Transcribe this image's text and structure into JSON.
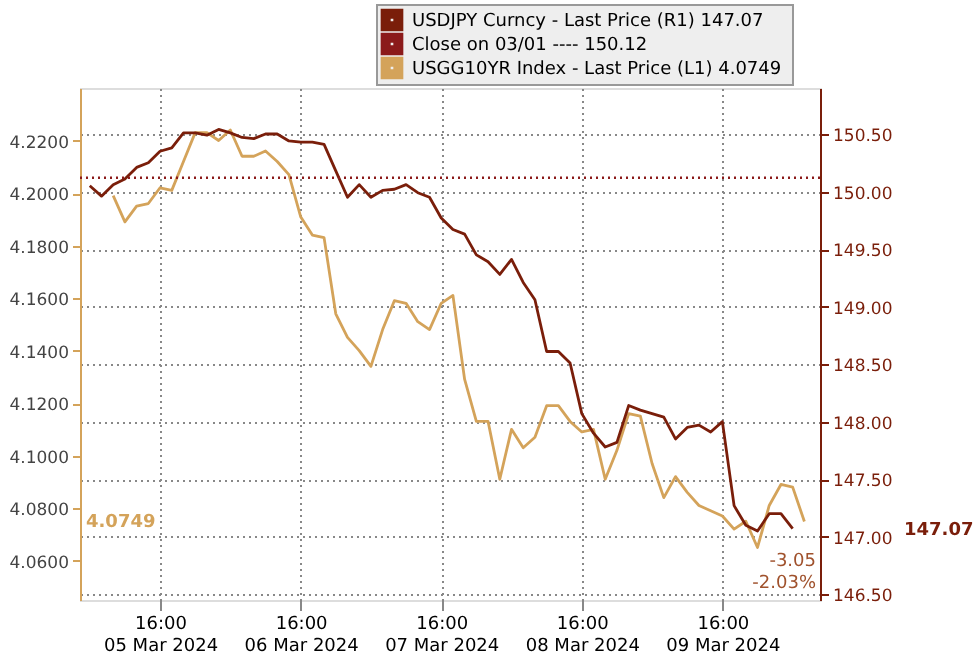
{
  "chart_data": {
    "type": "line",
    "x": [
      "2024-03-05T04:00",
      "2024-03-05T06:00",
      "2024-03-05T08:00",
      "2024-03-05T10:00",
      "2024-03-05T12:00",
      "2024-03-05T14:00",
      "2024-03-05T16:00",
      "2024-03-05T18:00",
      "2024-03-05T20:00",
      "2024-03-05T22:00",
      "2024-03-06T00:00",
      "2024-03-06T02:00",
      "2024-03-06T04:00",
      "2024-03-06T06:00",
      "2024-03-06T08:00",
      "2024-03-06T10:00",
      "2024-03-06T12:00",
      "2024-03-06T14:00",
      "2024-03-06T16:00",
      "2024-03-06T18:00",
      "2024-03-06T20:00",
      "2024-03-06T22:00",
      "2024-03-07T00:00",
      "2024-03-07T02:00",
      "2024-03-07T04:00",
      "2024-03-07T06:00",
      "2024-03-07T08:00",
      "2024-03-07T10:00",
      "2024-03-07T12:00",
      "2024-03-07T14:00",
      "2024-03-07T16:00",
      "2024-03-07T18:00",
      "2024-03-07T20:00",
      "2024-03-07T22:00",
      "2024-03-08T00:00",
      "2024-03-08T02:00",
      "2024-03-08T04:00",
      "2024-03-08T06:00",
      "2024-03-08T08:00",
      "2024-03-08T10:00",
      "2024-03-08T12:00",
      "2024-03-08T14:00",
      "2024-03-08T16:00",
      "2024-03-08T18:00",
      "2024-03-08T20:00",
      "2024-03-08T22:00",
      "2024-03-09T00:00",
      "2024-03-09T02:00",
      "2024-03-09T04:00",
      "2024-03-09T06:00",
      "2024-03-09T08:00",
      "2024-03-09T10:00",
      "2024-03-09T12:00",
      "2024-03-09T14:00",
      "2024-03-09T16:00",
      "2024-03-09T18:00",
      "2024-03-09T20:00",
      "2024-03-09T22:00",
      "2024-03-10T00:00",
      "2024-03-10T02:00",
      "2024-03-10T04:00",
      "2024-03-10T06:00"
    ],
    "series": [
      {
        "name": "USDJPY Curncy - Last Price (R1)  147.07",
        "color": "#7a1e0a",
        "axis": "y2",
        "values": [
          150.05,
          149.96,
          150.06,
          150.11,
          150.21,
          150.25,
          150.35,
          150.38,
          150.51,
          150.51,
          150.49,
          150.54,
          150.51,
          150.47,
          150.46,
          150.5,
          150.5,
          150.44,
          150.43,
          150.43,
          150.41,
          150.18,
          149.95,
          150.06,
          149.95,
          150.01,
          150.02,
          150.06,
          149.99,
          149.95,
          149.77,
          149.67,
          149.63,
          149.45,
          149.39,
          149.28,
          149.41,
          149.21,
          149.06,
          148.61,
          148.61,
          148.51,
          148.07,
          147.9,
          147.78,
          147.82,
          148.14,
          148.1,
          148.07,
          148.04,
          147.85,
          147.95,
          147.97,
          147.91,
          148.0,
          147.27,
          147.1,
          147.05,
          147.2,
          147.2,
          147.07,
          null
        ]
      },
      {
        "name": "USGG10YR Index - Last Price (L1)  4.0749",
        "color": "#d4a35a",
        "values": [
          null,
          null,
          4.199,
          4.189,
          4.195,
          4.196,
          4.202,
          4.201,
          4.212,
          4.223,
          4.223,
          4.22,
          4.224,
          4.214,
          4.214,
          4.216,
          4.212,
          4.207,
          4.191,
          4.184,
          4.183,
          4.154,
          4.145,
          4.14,
          4.134,
          4.148,
          4.159,
          4.158,
          4.151,
          4.148,
          4.158,
          4.161,
          4.129,
          4.113,
          4.113,
          4.091,
          4.11,
          4.103,
          4.107,
          4.119,
          4.119,
          4.113,
          4.109,
          4.11,
          4.091,
          4.102,
          4.116,
          4.115,
          4.097,
          4.084,
          4.092,
          4.086,
          4.081,
          4.079,
          4.077,
          4.072,
          4.075,
          4.065,
          4.081,
          4.089,
          4.088,
          4.0749
        ]
      }
    ],
    "xlim": [
      "2024-03-05T02:20",
      "2024-03-10T08:40"
    ],
    "xticks": [
      {
        "value": "2024-03-05T16:00",
        "label": "16:00\n05 Mar 2024"
      },
      {
        "value": "2024-03-06T16:00",
        "label": "16:00\n06 Mar 2024"
      },
      {
        "value": "2024-03-07T16:00",
        "label": "16:00\n07 Mar 2024"
      },
      {
        "value": "2024-03-08T16:00",
        "label": "16:00\n08 Mar 2024"
      },
      {
        "value": "2024-03-09T16:00",
        "label": "16:00\n09 Mar 2024"
      }
    ],
    "ylim": [
      4.045,
      4.24
    ],
    "yticks": [
      {
        "value": 4.06,
        "label": "4.0600"
      },
      {
        "value": 4.08,
        "label": "4.0800"
      },
      {
        "value": 4.1,
        "label": "4.1000"
      },
      {
        "value": 4.12,
        "label": "4.1200"
      },
      {
        "value": 4.14,
        "label": "4.1400"
      },
      {
        "value": 4.16,
        "label": "4.1600"
      },
      {
        "value": 4.18,
        "label": "4.1800"
      },
      {
        "value": 4.2,
        "label": "4.2000"
      },
      {
        "value": 4.22,
        "label": "4.2200"
      }
    ],
    "y2lim": [
      146.45,
      150.9
    ],
    "y2ticks": [
      {
        "value": 146.5,
        "label": "146.50"
      },
      {
        "value": 147,
        "label": "147.00"
      },
      {
        "value": 147.5,
        "label": "147.50"
      },
      {
        "value": 148,
        "label": "148.00"
      },
      {
        "value": 148.5,
        "label": "148.50"
      },
      {
        "value": 149,
        "label": "149.00"
      },
      {
        "value": 149.5,
        "label": "149.50"
      },
      {
        "value": 150,
        "label": "150.00"
      },
      {
        "value": 150.5,
        "label": "150.50"
      }
    ],
    "ref_lines": [
      {
        "axis": "y2",
        "value": 150.12,
        "label": "Close on 03/01 ----  150.12",
        "color": "#8b1a1a",
        "line_style": "dotted"
      }
    ],
    "annotations": [
      "4.0749",
      "147.07",
      "-3.05",
      "-2.03%"
    ],
    "grid": true,
    "legend": "top right",
    "line_style": "solid"
  }
}
